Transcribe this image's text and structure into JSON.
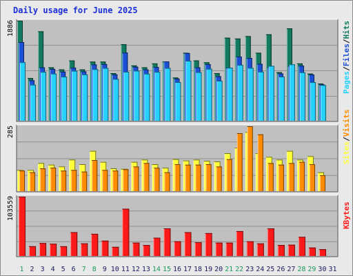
{
  "title": "Daily usage for June 2025",
  "colors": {
    "hits": "#127a5e",
    "files": "#1a4fd6",
    "pages": "#25d1ff",
    "visits": "#ff8c00",
    "sites": "#ffff3c",
    "kbytes": "#ff1a1a",
    "weekend_day": "#1b9a5a",
    "weekday": "#1a1a60",
    "panel_bg": "#c0c0c0",
    "grid": "#8e8e8e"
  },
  "legend": {
    "top": [
      "Hits",
      "Files",
      "Pages"
    ],
    "middle": [
      "Visits",
      "Sites"
    ],
    "bottom": [
      "KBytes"
    ],
    "separator": "/"
  },
  "chart_data": [
    {
      "type": "bar",
      "panel": "hits-files-pages",
      "categories": [
        "1",
        "2",
        "3",
        "4",
        "5",
        "6",
        "7",
        "8",
        "9",
        "10",
        "11",
        "12",
        "13",
        "14",
        "15",
        "16",
        "17",
        "18",
        "19",
        "20",
        "21",
        "22",
        "23",
        "24",
        "25",
        "26",
        "27",
        "28",
        "29",
        "30",
        "31"
      ],
      "ylabel_max": "1886",
      "ylim": [
        0,
        1886
      ],
      "series": [
        {
          "name": "Hits",
          "values": [
            1886,
            812,
            1687,
            1013,
            974,
            1142,
            974,
            1120,
            1120,
            904,
            1445,
            1048,
            1013,
            1086,
            1120,
            822,
            1286,
            1142,
            1107,
            904,
            1567,
            1552,
            1597,
            1286,
            1631,
            922,
            1742,
            1086,
            895,
            710,
            0
          ]
        },
        {
          "name": "Files",
          "values": [
            1486,
            770,
            1012,
            982,
            932,
            1006,
            936,
            1067,
            1073,
            880,
            1288,
            1023,
            973,
            1018,
            1123,
            802,
            1280,
            1012,
            1072,
            845,
            1008,
            1213,
            1188,
            1079,
            1016,
            898,
            1041,
            1045,
            877,
            692,
            0
          ]
        },
        {
          "name": "Pages",
          "values": [
            1108,
            688,
            927,
            895,
            838,
            948,
            880,
            978,
            1000,
            795,
            930,
            950,
            893,
            927,
            1000,
            736,
            1136,
            922,
            985,
            762,
            1005,
            1058,
            1003,
            932,
            1040,
            840,
            1068,
            920,
            735,
            680,
            0
          ]
        }
      ]
    },
    {
      "type": "bar",
      "panel": "visits-sites",
      "categories": [
        "1",
        "2",
        "3",
        "4",
        "5",
        "6",
        "7",
        "8",
        "9",
        "10",
        "11",
        "12",
        "13",
        "14",
        "15",
        "16",
        "17",
        "18",
        "19",
        "20",
        "21",
        "22",
        "23",
        "24",
        "25",
        "26",
        "27",
        "28",
        "29",
        "30",
        "31"
      ],
      "ylabel_max": "285",
      "ylim": [
        0,
        285
      ],
      "series": [
        {
          "name": "Sites",
          "values": [
            95,
            95,
            125,
            118,
            110,
            140,
            120,
            178,
            130,
            102,
            100,
            130,
            140,
            120,
            105,
            142,
            136,
            140,
            135,
            132,
            168,
            192,
            260,
            168,
            152,
            140,
            178,
            140,
            155,
            85,
            0
          ]
        },
        {
          "name": "Visits",
          "values": [
            92,
            85,
            102,
            105,
            92,
            95,
            88,
            138,
            95,
            92,
            98,
            110,
            125,
            105,
            85,
            120,
            118,
            118,
            120,
            110,
            142,
            255,
            285,
            250,
            125,
            118,
            125,
            130,
            120,
            72,
            0
          ]
        }
      ]
    },
    {
      "type": "bar",
      "panel": "kbytes",
      "categories": [
        "1",
        "2",
        "3",
        "4",
        "5",
        "6",
        "7",
        "8",
        "9",
        "10",
        "11",
        "12",
        "13",
        "14",
        "15",
        "16",
        "17",
        "18",
        "19",
        "20",
        "21",
        "22",
        "23",
        "24",
        "25",
        "26",
        "27",
        "28",
        "29",
        "30",
        "31"
      ],
      "ylabel_max": "103559",
      "ylim": [
        0,
        103559
      ],
      "series": [
        {
          "name": "KBytes",
          "values": [
            103559,
            18000,
            23500,
            22300,
            18000,
            42300,
            22900,
            39400,
            27600,
            16900,
            82700,
            24200,
            20100,
            32700,
            48800,
            26500,
            42300,
            24800,
            40600,
            24200,
            24200,
            44100,
            26500,
            22900,
            48800,
            20100,
            20600,
            34100,
            15700,
            12900,
            0
          ]
        }
      ]
    }
  ],
  "xaxis": {
    "labels": [
      "1",
      "2",
      "3",
      "4",
      "5",
      "6",
      "7",
      "8",
      "9",
      "10",
      "11",
      "12",
      "13",
      "14",
      "15",
      "16",
      "17",
      "18",
      "19",
      "20",
      "21",
      "22",
      "23",
      "24",
      "25",
      "26",
      "27",
      "28",
      "29",
      "30",
      "31"
    ],
    "weekend_days": [
      "1",
      "7",
      "8",
      "14",
      "15",
      "21",
      "22",
      "28",
      "29"
    ]
  }
}
